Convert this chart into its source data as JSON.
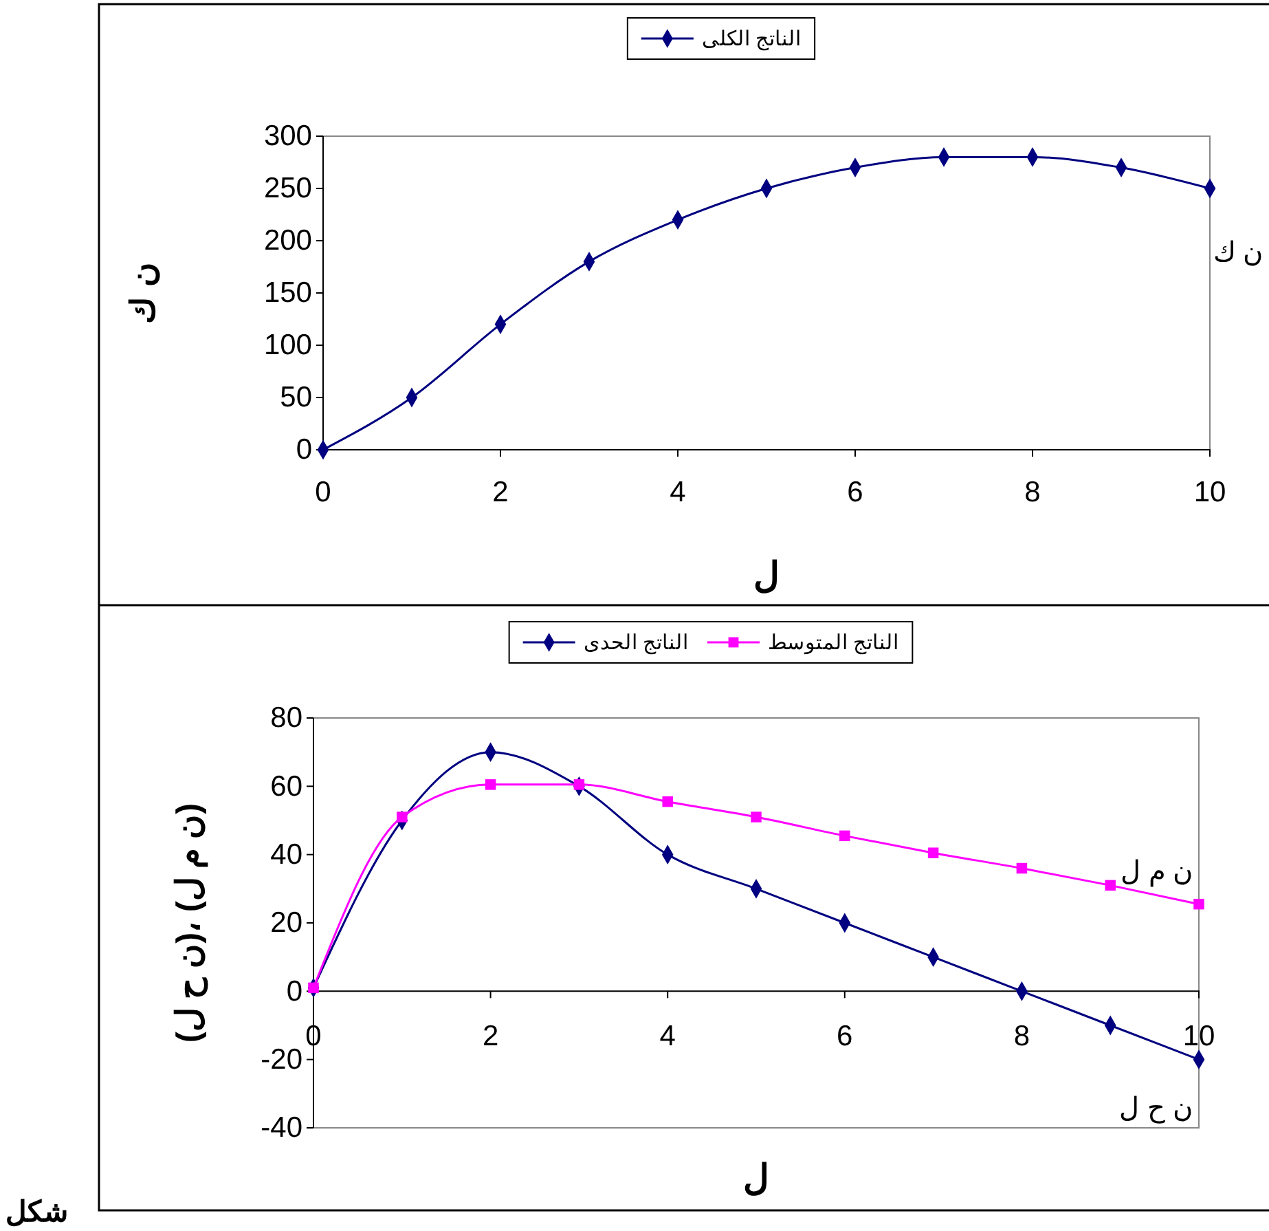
{
  "chart_data": [
    {
      "type": "line",
      "ylabel": "ن ك",
      "xlabel": "ل",
      "xlim": [
        0,
        10
      ],
      "xticks": [
        0,
        2,
        4,
        6,
        8,
        10
      ],
      "ylim": [
        0,
        300
      ],
      "yticks": [
        0,
        50,
        100,
        150,
        200,
        250,
        300
      ],
      "grid": false,
      "legend": "top",
      "x": [
        0,
        1,
        2,
        3,
        4,
        5,
        6,
        7,
        8,
        9,
        10
      ],
      "series": [
        {
          "name": "الناتج الكلى",
          "color": "#000080",
          "marker": "diamond",
          "values": [
            0,
            50,
            120,
            180,
            220,
            250,
            270,
            280,
            280,
            270,
            250
          ]
        }
      ],
      "annotations": [
        "ن ك"
      ]
    },
    {
      "type": "line",
      "ylabel": "(ن ح ل)، (ن م ل)",
      "xlabel": "ل",
      "xlim": [
        0,
        10
      ],
      "xticks": [
        0,
        2,
        4,
        6,
        8,
        10
      ],
      "ylim": [
        -40,
        80
      ],
      "yticks": [
        -40,
        -20,
        0,
        20,
        40,
        60,
        80
      ],
      "grid": false,
      "legend": "top",
      "x": [
        0,
        1,
        2,
        3,
        4,
        5,
        6,
        7,
        8,
        9,
        10
      ],
      "series": [
        {
          "name": "الناتج الحدى",
          "color": "#000080",
          "marker": "diamond",
          "values": [
            1,
            50,
            70,
            60,
            40,
            30,
            20,
            10,
            0,
            -10,
            -20
          ]
        },
        {
          "name": "الناتج المتوسط",
          "color": "#ff00ff",
          "marker": "square",
          "values": [
            1,
            51,
            60.5,
            60.5,
            55.5,
            51,
            45.5,
            40.5,
            36,
            31,
            25.5
          ]
        }
      ],
      "annotations": [
        "ن م ل",
        "ن ح ل",
        "شكل"
      ]
    }
  ]
}
